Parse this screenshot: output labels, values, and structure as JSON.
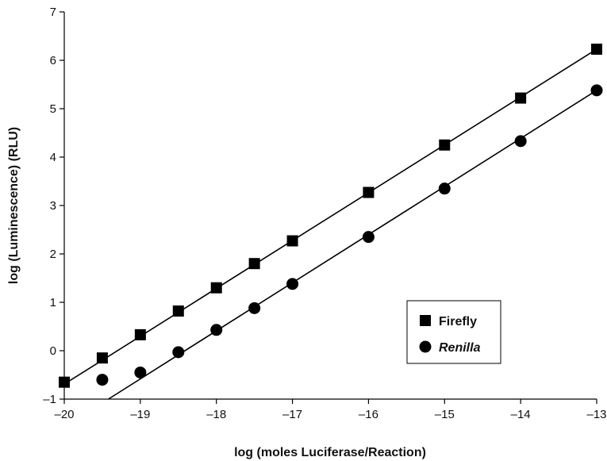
{
  "chart_data": {
    "type": "scatter",
    "xlabel": "log (moles Luciferase/Reaction)",
    "ylabel": "log (Luminescence) (RLU)",
    "xlim": [
      -20,
      -13
    ],
    "ylim": [
      -1,
      7
    ],
    "x_ticks": [
      -20,
      -19,
      -18,
      -17,
      -16,
      -15,
      -14,
      -13
    ],
    "x_tick_labels": [
      "–20",
      "–19",
      "–18",
      "–17",
      "–16",
      "–15",
      "–14",
      "–13"
    ],
    "y_ticks": [
      -1,
      0,
      1,
      2,
      3,
      4,
      5,
      6,
      7
    ],
    "y_tick_labels": [
      "–1",
      "0",
      "1",
      "2",
      "3",
      "4",
      "5",
      "6",
      "7"
    ],
    "grid": false,
    "legend_position": "lower-right",
    "series": [
      {
        "name": "Firefly",
        "marker": "square",
        "color": "#000000",
        "x": [
          -20,
          -19.5,
          -19,
          -18.5,
          -18,
          -17.5,
          -17,
          -16,
          -15,
          -14,
          -13
        ],
        "y": [
          -0.65,
          -0.15,
          0.33,
          0.82,
          1.3,
          1.8,
          2.27,
          3.27,
          4.25,
          5.22,
          6.23
        ],
        "fit": {
          "x": [
            -20,
            -13
          ],
          "y": [
            -0.69,
            6.23
          ]
        }
      },
      {
        "name": "Renilla",
        "marker": "circle",
        "color": "#000000",
        "x": [
          -19.5,
          -19,
          -18.5,
          -18,
          -17.5,
          -17,
          -16,
          -15,
          -14,
          -13
        ],
        "y": [
          -0.6,
          -0.45,
          -0.03,
          0.43,
          0.88,
          1.38,
          2.35,
          3.35,
          4.33,
          5.38
        ],
        "fit": {
          "x": [
            -19.42,
            -13
          ],
          "y": [
            -1.0,
            5.38
          ]
        }
      }
    ]
  }
}
